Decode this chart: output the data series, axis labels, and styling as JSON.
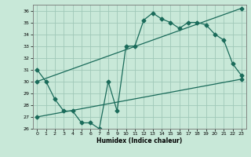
{
  "xlabel": "Humidex (Indice chaleur)",
  "xlim": [
    -0.5,
    23.5
  ],
  "ylim": [
    26,
    36.5
  ],
  "yticks": [
    26,
    27,
    28,
    29,
    30,
    31,
    32,
    33,
    34,
    35,
    36
  ],
  "xticks": [
    0,
    1,
    2,
    3,
    4,
    5,
    6,
    7,
    8,
    9,
    10,
    11,
    12,
    13,
    14,
    15,
    16,
    17,
    18,
    19,
    20,
    21,
    22,
    23
  ],
  "bg_color": "#c8e8d8",
  "grid_color": "#a0c8b8",
  "line_color": "#1a6b5a",
  "line1_x": [
    0,
    1,
    2,
    3,
    4,
    5,
    6,
    7,
    8,
    9,
    10,
    11,
    12,
    13,
    14,
    15,
    16,
    17,
    18,
    19,
    20,
    21,
    22,
    23
  ],
  "line1_y": [
    31,
    30,
    28.5,
    27.5,
    27.5,
    26.5,
    26.5,
    26.0,
    30.0,
    27.5,
    33.0,
    33.0,
    35.2,
    35.8,
    35.3,
    35.0,
    34.5,
    35.0,
    35.0,
    34.8,
    34.0,
    33.5,
    31.5,
    30.5
  ],
  "line2_x": [
    0,
    23
  ],
  "line2_y": [
    30.0,
    36.2
  ],
  "line3_x": [
    0,
    23
  ],
  "line3_y": [
    27.0,
    30.2
  ]
}
